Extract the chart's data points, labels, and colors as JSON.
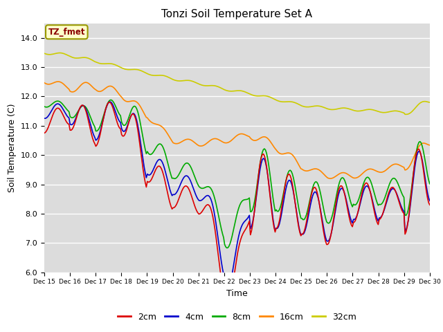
{
  "title": "Tonzi Soil Temperature Set A",
  "xlabel": "Time",
  "ylabel": "Soil Temperature (C)",
  "ylim": [
    6.0,
    14.5
  ],
  "background_color": "#dcdcdc",
  "legend_label": "TZ_fmet",
  "series": {
    "2cm": {
      "color": "#dd0000",
      "lw": 1.2
    },
    "4cm": {
      "color": "#0000cc",
      "lw": 1.2
    },
    "8cm": {
      "color": "#00aa00",
      "lw": 1.2
    },
    "16cm": {
      "color": "#ff8800",
      "lw": 1.2
    },
    "32cm": {
      "color": "#cccc00",
      "lw": 1.2
    }
  },
  "xtick_labels": [
    "Dec 15",
    "Dec 16",
    "Dec 17",
    "Dec 18",
    "Dec 19",
    "Dec 20",
    "Dec 21",
    "Dec 22",
    "Dec 23",
    "Dec 24",
    "Dec 25",
    "Dec 26",
    "Dec 27",
    "Dec 28",
    "Dec 29",
    "Dec 30"
  ],
  "ytick_labels": [
    "6.0",
    "7.0",
    "8.0",
    "9.0",
    "10.0",
    "11.0",
    "12.0",
    "13.0",
    "14.0"
  ]
}
